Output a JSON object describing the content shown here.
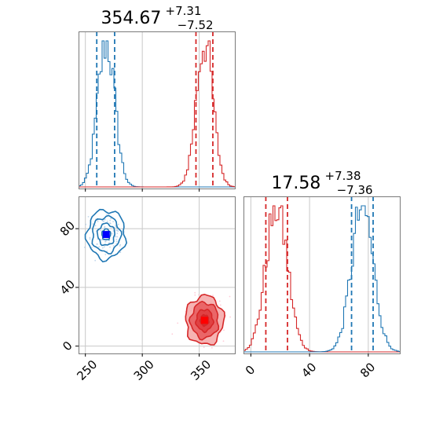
{
  "colors": {
    "series_a": "#1f77b4",
    "series_b": "#d62728",
    "fill_b": "#e8585a",
    "fill_b_light": "#f4a6a6",
    "scatter_b": "#ffb6c8",
    "marker_a": "#0000ff",
    "marker_b": "#ff0000",
    "grid": "#c8c8c8",
    "frame": "#7a7a7a"
  },
  "chart_data": [
    {
      "type": "histogram",
      "panel": "top-left",
      "title_value": "354.67",
      "title_plus": "+7.31",
      "title_minus": "−7.52",
      "xlim": [
        244,
        382
      ],
      "xgrid": [
        250,
        300,
        350
      ],
      "show_xticklabels": false,
      "show_yticks": false,
      "series": [
        {
          "color": "series_a",
          "center": 268.3,
          "sigma": 7.5,
          "lines": [
            260.0,
            275.7
          ]
        },
        {
          "color": "series_b",
          "center": 354.67,
          "sigma": 7.4,
          "lines": [
            347.15,
            361.98
          ]
        }
      ]
    },
    {
      "type": "scatter-contour",
      "panel": "bottom-left",
      "xlim": [
        244,
        382
      ],
      "ylim": [
        -5,
        102
      ],
      "xticks": [
        250,
        300,
        350
      ],
      "xticklabels": [
        "250",
        "300",
        "350"
      ],
      "yticks": [
        0,
        40,
        80
      ],
      "yticklabels": [
        "0",
        "40",
        "80"
      ],
      "series": [
        {
          "color": "series_a",
          "marker_color": "marker_a",
          "fill": false,
          "center": [
            268.3,
            76.0
          ],
          "spread": [
            7.5,
            7.4
          ]
        },
        {
          "color": "series_b",
          "marker_color": "marker_b",
          "fill": true,
          "center": [
            354.67,
            17.58
          ],
          "spread": [
            7.4,
            7.4
          ]
        }
      ]
    },
    {
      "type": "histogram",
      "panel": "bottom-right",
      "title_value": "17.58",
      "title_plus": "+7.38",
      "title_minus": "−7.36",
      "xlim": [
        -5,
        102
      ],
      "xticks": [
        0,
        40,
        80
      ],
      "xticklabels": [
        "0",
        "40",
        "80"
      ],
      "xgrid": [
        0,
        40,
        80
      ],
      "show_yticks": false,
      "series": [
        {
          "color": "series_b",
          "center": 17.58,
          "sigma": 7.4,
          "lines": [
            10.22,
            24.96
          ]
        },
        {
          "color": "series_a",
          "center": 76.0,
          "sigma": 7.4,
          "lines": [
            68.6,
            83.3
          ]
        }
      ]
    }
  ]
}
